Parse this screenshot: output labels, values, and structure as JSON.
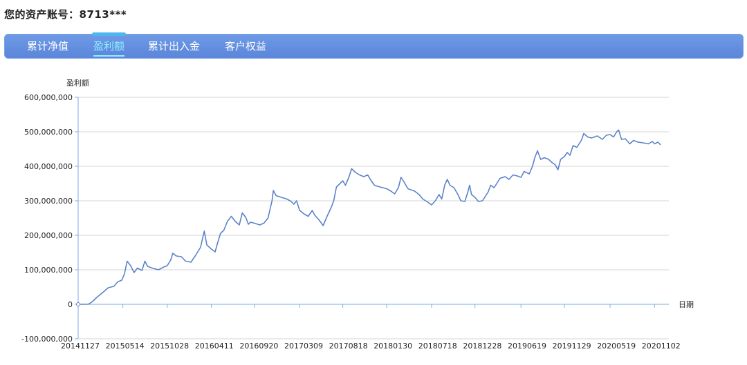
{
  "header": {
    "account": "您的资产账号：8713***"
  },
  "tabs": [
    {
      "label": "累计净值",
      "active": false
    },
    {
      "label": "盈利额",
      "active": true
    },
    {
      "label": "累计出入金",
      "active": false
    },
    {
      "label": "客户权益",
      "active": false
    }
  ],
  "colors": {
    "tabbar": "#5b86da",
    "active_tab": "#8ff0ff",
    "line": "#5b83c9",
    "grid": "#d6d6d6",
    "axis": "#7aaee0"
  },
  "chart_data": {
    "type": "line",
    "title": "",
    "ylabel": "盈利额",
    "xlabel": "日期",
    "ylim": [
      -100000000,
      600000000
    ],
    "yticks": [
      {
        "value": 600000000,
        "label": "600,000,000"
      },
      {
        "value": 500000000,
        "label": "500,000,000"
      },
      {
        "value": 400000000,
        "label": "400,000,000"
      },
      {
        "value": 300000000,
        "label": "300,000,000"
      },
      {
        "value": 200000000,
        "label": "200,000,000"
      },
      {
        "value": 100000000,
        "label": "100,000,000"
      },
      {
        "value": 0,
        "label": "0"
      },
      {
        "value": -100000000,
        "label": "-100,000,000"
      }
    ],
    "xticks": [
      "20141127",
      "20150514",
      "20151028",
      "20160411",
      "20160920",
      "20170309",
      "20170818",
      "20180130",
      "20180718",
      "20181228",
      "20190619",
      "20191129",
      "20200519",
      "20201102"
    ],
    "grid": true,
    "series": [
      {
        "points": [
          [
            "20141127",
            0
          ],
          [
            "20141215",
            0
          ],
          [
            "20150105",
            500000
          ],
          [
            "20150120",
            8000000
          ],
          [
            "20150205",
            20000000
          ],
          [
            "20150301",
            35000000
          ],
          [
            "20150320",
            48000000
          ],
          [
            "20150410",
            52000000
          ],
          [
            "20150425",
            65000000
          ],
          [
            "20150510",
            70000000
          ],
          [
            "20150520",
            88000000
          ],
          [
            "20150530",
            125000000
          ],
          [
            "20150612",
            112000000
          ],
          [
            "20150625",
            92000000
          ],
          [
            "20150708",
            105000000
          ],
          [
            "20150725",
            98000000
          ],
          [
            "20150805",
            125000000
          ],
          [
            "20150815",
            110000000
          ],
          [
            "20150901",
            105000000
          ],
          [
            "20150925",
            100000000
          ],
          [
            "20151015",
            108000000
          ],
          [
            "20151028",
            112000000
          ],
          [
            "20151110",
            128000000
          ],
          [
            "20151118",
            148000000
          ],
          [
            "20151201",
            140000000
          ],
          [
            "20151220",
            138000000
          ],
          [
            "20160105",
            125000000
          ],
          [
            "20160125",
            122000000
          ],
          [
            "20160210",
            140000000
          ],
          [
            "20160301",
            165000000
          ],
          [
            "20160315",
            212000000
          ],
          [
            "20160325",
            172000000
          ],
          [
            "20160411",
            160000000
          ],
          [
            "20160425",
            152000000
          ],
          [
            "20160505",
            180000000
          ],
          [
            "20160515",
            205000000
          ],
          [
            "20160528",
            215000000
          ],
          [
            "20160610",
            240000000
          ],
          [
            "20160625",
            255000000
          ],
          [
            "20160710",
            240000000
          ],
          [
            "20160725",
            230000000
          ],
          [
            "20160805",
            265000000
          ],
          [
            "20160818",
            252000000
          ],
          [
            "20160828",
            232000000
          ],
          [
            "20160905",
            238000000
          ],
          [
            "20160920",
            235000000
          ],
          [
            "20161010",
            230000000
          ],
          [
            "20161025",
            235000000
          ],
          [
            "20161110",
            250000000
          ],
          [
            "20161125",
            300000000
          ],
          [
            "20161130",
            330000000
          ],
          [
            "20161210",
            315000000
          ],
          [
            "20161230",
            310000000
          ],
          [
            "20170120",
            305000000
          ],
          [
            "20170205",
            298000000
          ],
          [
            "20170215",
            290000000
          ],
          [
            "20170225",
            300000000
          ],
          [
            "20170309",
            272000000
          ],
          [
            "20170325",
            262000000
          ],
          [
            "20170410",
            255000000
          ],
          [
            "20170425",
            272000000
          ],
          [
            "20170505",
            258000000
          ],
          [
            "20170520",
            245000000
          ],
          [
            "20170530",
            235000000
          ],
          [
            "20170605",
            228000000
          ],
          [
            "20170620",
            255000000
          ],
          [
            "20170705",
            280000000
          ],
          [
            "20170715",
            300000000
          ],
          [
            "20170725",
            340000000
          ],
          [
            "20170818",
            358000000
          ],
          [
            "20170828",
            345000000
          ],
          [
            "20170910",
            368000000
          ],
          [
            "20170920",
            393000000
          ],
          [
            "20171005",
            382000000
          ],
          [
            "20171020",
            375000000
          ],
          [
            "20171105",
            370000000
          ],
          [
            "20171120",
            375000000
          ],
          [
            "20171201",
            360000000
          ],
          [
            "20171215",
            345000000
          ],
          [
            "20180105",
            340000000
          ],
          [
            "20180130",
            335000000
          ],
          [
            "20180215",
            328000000
          ],
          [
            "20180301",
            320000000
          ],
          [
            "20180315",
            338000000
          ],
          [
            "20180325",
            368000000
          ],
          [
            "20180405",
            355000000
          ],
          [
            "20180420",
            335000000
          ],
          [
            "20180515",
            328000000
          ],
          [
            "20180601",
            318000000
          ],
          [
            "20180615",
            305000000
          ],
          [
            "20180630",
            298000000
          ],
          [
            "20180718",
            288000000
          ],
          [
            "20180801",
            300000000
          ],
          [
            "20180815",
            318000000
          ],
          [
            "20180825",
            305000000
          ],
          [
            "20180905",
            345000000
          ],
          [
            "20180915",
            362000000
          ],
          [
            "20180925",
            345000000
          ],
          [
            "20181010",
            338000000
          ],
          [
            "20181025",
            318000000
          ],
          [
            "20181105",
            300000000
          ],
          [
            "20181120",
            298000000
          ],
          [
            "20181201",
            325000000
          ],
          [
            "20181208",
            345000000
          ],
          [
            "20181215",
            318000000
          ],
          [
            "20181228",
            310000000
          ],
          [
            "20190110",
            298000000
          ],
          [
            "20190125",
            300000000
          ],
          [
            "20190215",
            325000000
          ],
          [
            "20190225",
            345000000
          ],
          [
            "20190310",
            338000000
          ],
          [
            "20190401",
            365000000
          ],
          [
            "20190420",
            370000000
          ],
          [
            "20190505",
            362000000
          ],
          [
            "20190520",
            375000000
          ],
          [
            "20190605",
            372000000
          ],
          [
            "20190619",
            368000000
          ],
          [
            "20190701",
            385000000
          ],
          [
            "20190720",
            378000000
          ],
          [
            "20190801",
            400000000
          ],
          [
            "20190810",
            425000000
          ],
          [
            "20190820",
            445000000
          ],
          [
            "20190901",
            420000000
          ],
          [
            "20190915",
            425000000
          ],
          [
            "20191001",
            420000000
          ],
          [
            "20191015",
            410000000
          ],
          [
            "20191025",
            405000000
          ],
          [
            "20191105",
            390000000
          ],
          [
            "20191115",
            420000000
          ],
          [
            "20191129",
            428000000
          ],
          [
            "20191210",
            440000000
          ],
          [
            "20191220",
            432000000
          ],
          [
            "20200101",
            460000000
          ],
          [
            "20200115",
            455000000
          ],
          [
            "20200201",
            475000000
          ],
          [
            "20200210",
            495000000
          ],
          [
            "20200225",
            485000000
          ],
          [
            "20200310",
            482000000
          ],
          [
            "20200401",
            488000000
          ],
          [
            "20200420",
            478000000
          ],
          [
            "20200505",
            490000000
          ],
          [
            "20200519",
            492000000
          ],
          [
            "20200601",
            485000000
          ],
          [
            "20200615",
            502000000
          ],
          [
            "20200620",
            505000000
          ],
          [
            "20200701",
            478000000
          ],
          [
            "20200715",
            480000000
          ],
          [
            "20200801",
            465000000
          ],
          [
            "20200815",
            475000000
          ],
          [
            "20200901",
            470000000
          ],
          [
            "20200920",
            468000000
          ],
          [
            "20201010",
            465000000
          ],
          [
            "20201025",
            472000000
          ],
          [
            "20201102",
            465000000
          ],
          [
            "20201115",
            470000000
          ],
          [
            "20201125",
            462000000
          ]
        ]
      }
    ]
  }
}
